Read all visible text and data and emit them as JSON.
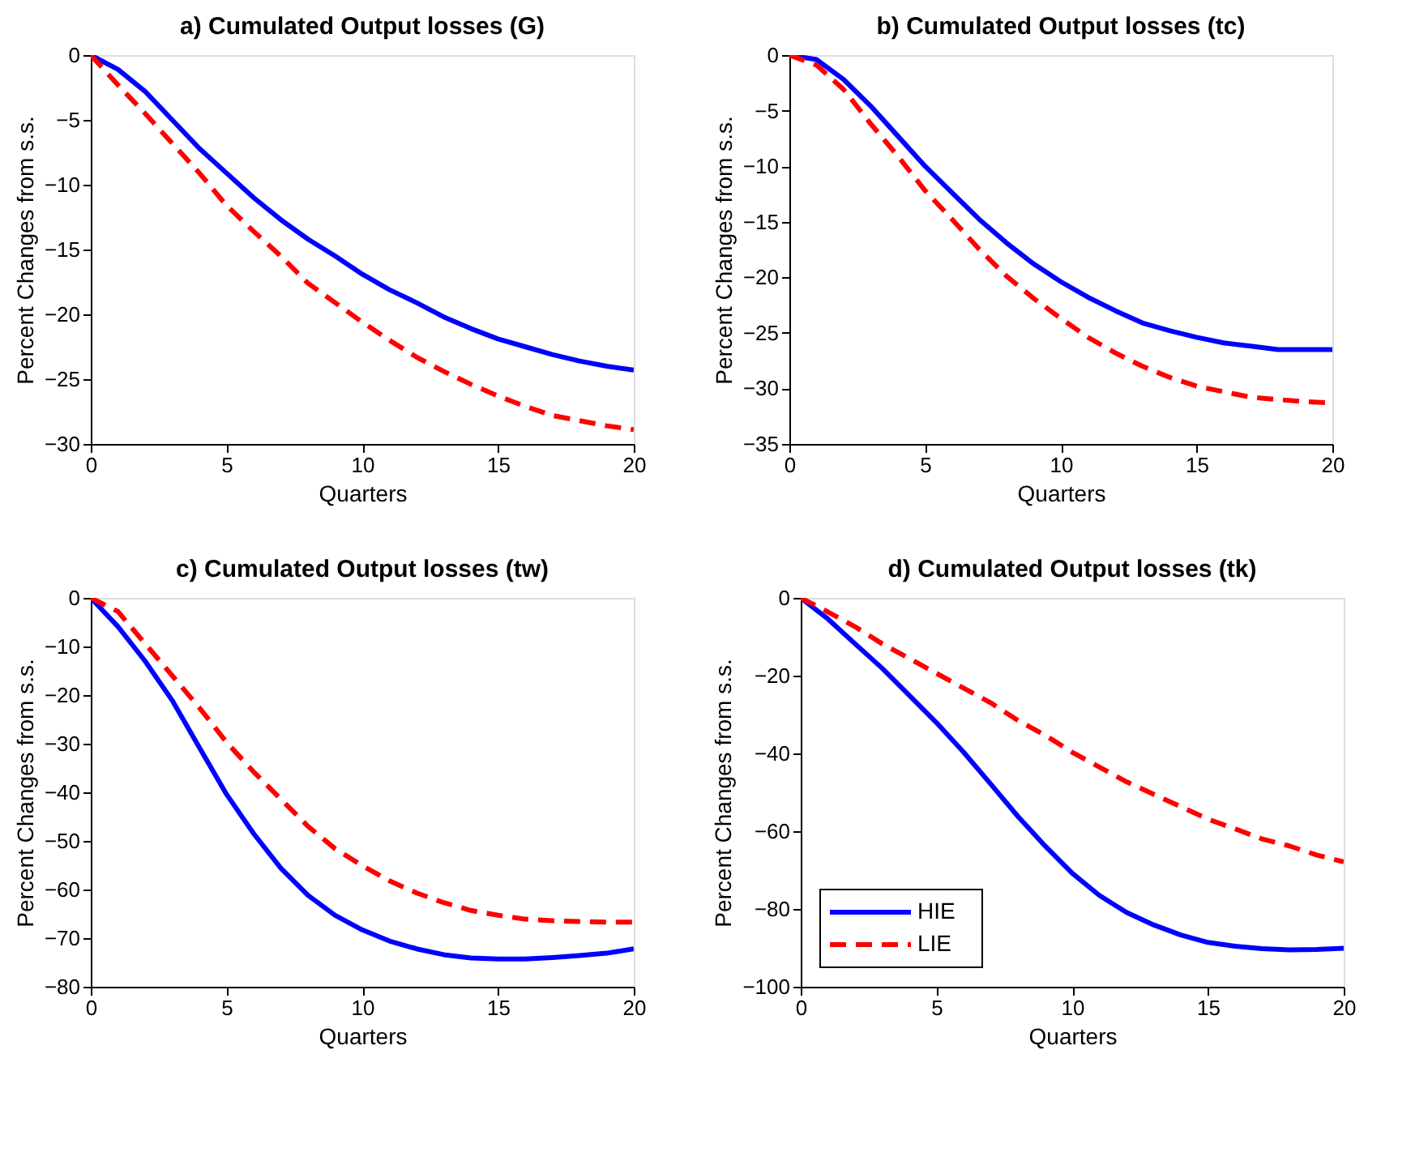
{
  "chart_data": [
    {
      "type": "line",
      "title": "a) Cumulated Output losses (G)",
      "xlabel": "Quarters",
      "ylabel": "Percent Changes from s.s.",
      "x": [
        0,
        1,
        2,
        3,
        4,
        5,
        6,
        7,
        8,
        9,
        10,
        11,
        12,
        13,
        14,
        15,
        16,
        17,
        18,
        19,
        20
      ],
      "xlim": [
        0,
        20
      ],
      "xticks": [
        0,
        5,
        10,
        15,
        20
      ],
      "ylim": [
        -30,
        0
      ],
      "yticks": [
        -30,
        -25,
        -20,
        -15,
        -10,
        -5,
        0
      ],
      "grid": false,
      "series": [
        {
          "color": "#0000ff",
          "line_style": "solid",
          "values": [
            0,
            -1.1,
            -2.8,
            -5.0,
            -7.2,
            -9.1,
            -11.0,
            -12.7,
            -14.2,
            -15.5,
            -16.9,
            -18.1,
            -19.1,
            -20.2,
            -21.1,
            -21.9,
            -22.5,
            -23.1,
            -23.6,
            -24.0,
            -24.3
          ]
        },
        {
          "color": "#ff0000",
          "line_style": "dashed",
          "values": [
            0,
            -2.3,
            -4.5,
            -6.8,
            -9.1,
            -11.6,
            -13.6,
            -15.5,
            -17.6,
            -19.1,
            -20.6,
            -22.0,
            -23.3,
            -24.4,
            -25.4,
            -26.3,
            -27.1,
            -27.8,
            -28.2,
            -28.6,
            -28.9
          ]
        }
      ]
    },
    {
      "type": "line",
      "title": "b) Cumulated Output losses (tc)",
      "xlabel": "Quarters",
      "ylabel": "Percent Changes from s.s.",
      "x": [
        0,
        1,
        2,
        3,
        4,
        5,
        6,
        7,
        8,
        9,
        10,
        11,
        12,
        13,
        14,
        15,
        16,
        17,
        18,
        19,
        20
      ],
      "xlim": [
        0,
        20
      ],
      "xticks": [
        0,
        5,
        10,
        15,
        20
      ],
      "ylim": [
        -35,
        0
      ],
      "yticks": [
        -35,
        -30,
        -25,
        -20,
        -15,
        -10,
        -5,
        0
      ],
      "grid": false,
      "series": [
        {
          "color": "#0000ff",
          "line_style": "solid",
          "values": [
            0,
            -0.4,
            -2.2,
            -4.6,
            -7.3,
            -10.0,
            -12.4,
            -14.8,
            -16.9,
            -18.8,
            -20.4,
            -21.8,
            -23.0,
            -24.1,
            -24.8,
            -25.4,
            -25.9,
            -26.2,
            -26.5,
            -26.5,
            -26.5
          ]
        },
        {
          "color": "#ff0000",
          "line_style": "dashed",
          "values": [
            0,
            -0.9,
            -3.1,
            -6.2,
            -9.1,
            -12.2,
            -14.8,
            -17.5,
            -19.9,
            -21.9,
            -23.7,
            -25.4,
            -26.8,
            -28.0,
            -29.0,
            -29.8,
            -30.3,
            -30.8,
            -31.0,
            -31.2,
            -31.3
          ]
        }
      ]
    },
    {
      "type": "line",
      "title": "c) Cumulated Output losses (tw)",
      "xlabel": "Quarters",
      "ylabel": "Percent Changes from s.s.",
      "x": [
        0,
        1,
        2,
        3,
        4,
        5,
        6,
        7,
        8,
        9,
        10,
        11,
        12,
        13,
        14,
        15,
        16,
        17,
        18,
        19,
        20
      ],
      "xlim": [
        0,
        20
      ],
      "xticks": [
        0,
        5,
        10,
        15,
        20
      ],
      "ylim": [
        -80,
        0
      ],
      "yticks": [
        -80,
        -70,
        -60,
        -50,
        -40,
        -30,
        -20,
        -10,
        0
      ],
      "grid": false,
      "series": [
        {
          "color": "#0000ff",
          "line_style": "solid",
          "values": [
            0,
            -5.9,
            -13.0,
            -21.1,
            -30.8,
            -40.4,
            -48.5,
            -55.6,
            -61.2,
            -65.3,
            -68.3,
            -70.6,
            -72.2,
            -73.4,
            -74.1,
            -74.3,
            -74.3,
            -74.0,
            -73.6,
            -73.1,
            -72.2
          ]
        },
        {
          "color": "#ff0000",
          "line_style": "dashed",
          "values": [
            0,
            -2.8,
            -9.4,
            -16.0,
            -22.6,
            -29.7,
            -35.8,
            -41.4,
            -47.0,
            -51.6,
            -55.1,
            -58.2,
            -60.7,
            -62.7,
            -64.3,
            -65.3,
            -66.1,
            -66.4,
            -66.6,
            -66.7,
            -66.7
          ]
        }
      ]
    },
    {
      "type": "line",
      "title": "d) Cumulated Output losses (tk)",
      "xlabel": "Quarters",
      "ylabel": "Percent Changes from s.s.",
      "x": [
        0,
        1,
        2,
        3,
        4,
        5,
        6,
        7,
        8,
        9,
        10,
        11,
        12,
        13,
        14,
        15,
        16,
        17,
        18,
        19,
        20
      ],
      "xlim": [
        0,
        20
      ],
      "xticks": [
        0,
        5,
        10,
        15,
        20
      ],
      "ylim": [
        -100,
        0
      ],
      "yticks": [
        -100,
        -80,
        -60,
        -40,
        -20,
        0
      ],
      "grid": false,
      "legend": "bottom left",
      "series": [
        {
          "name": "HIE",
          "color": "#0000ff",
          "line_style": "solid",
          "values": [
            0,
            -5.4,
            -11.8,
            -18.1,
            -25.1,
            -32.1,
            -39.7,
            -47.9,
            -56.2,
            -63.8,
            -70.8,
            -76.5,
            -80.9,
            -84.1,
            -86.7,
            -88.6,
            -89.6,
            -90.2,
            -90.5,
            -90.4,
            -90.1
          ]
        },
        {
          "name": "LIE",
          "color": "#ff0000",
          "line_style": "dashed",
          "values": [
            0,
            -3.6,
            -7.4,
            -11.8,
            -15.6,
            -19.4,
            -23.2,
            -27.0,
            -31.5,
            -35.3,
            -39.7,
            -43.5,
            -47.3,
            -50.5,
            -53.7,
            -56.9,
            -59.4,
            -62.0,
            -63.8,
            -66.1,
            -67.9
          ]
        }
      ]
    }
  ]
}
